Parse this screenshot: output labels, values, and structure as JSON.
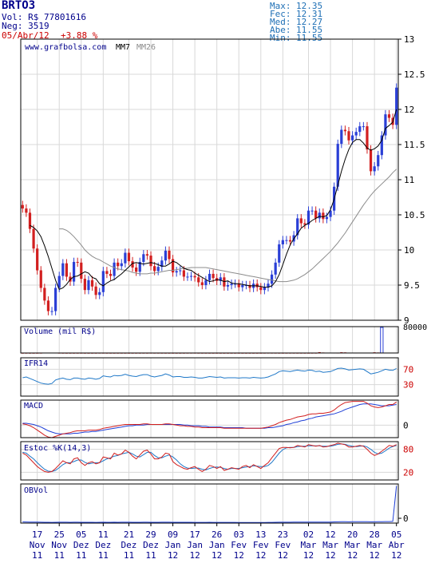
{
  "header": {
    "ticker": "BRTO3",
    "volume_label": "Vol: R$ 77801616",
    "trades_label": "Neg: 3519",
    "date": "05/Abr/12",
    "change": "+3.88 %",
    "stats": [
      {
        "label": "Max:",
        "value": "12.35"
      },
      {
        "label": "Fec:",
        "value": "12.31"
      },
      {
        "label": "Med:",
        "value": "12.27"
      },
      {
        "label": "Abe:",
        "value": "11.55"
      },
      {
        "label": "Min:",
        "value": "11.55"
      }
    ]
  },
  "colors": {
    "up": "#2a3fd6",
    "down": "#d21f1f",
    "mm7": "#000000",
    "mm26": "#8c8c8c",
    "ifr": "#1f78c8",
    "macd": "#d21f1f",
    "macd_signal": "#1f3fd6",
    "stoch_k": "#d21f1f",
    "stoch_d": "#1f78c8",
    "obv": "#1f3fd6",
    "grid": "#d8d8d8",
    "text_dark": "#00008b",
    "text_red": "#cc0000",
    "text_stats": "#1e6fb5"
  },
  "chart_data": [
    {
      "type": "candlestick",
      "watermark": "www.grafbolsa.com",
      "legend": [
        "MM7",
        "MM26"
      ],
      "y_ticks": [
        9,
        9.5,
        10,
        10.5,
        11,
        11.5,
        12,
        12.5,
        13
      ],
      "ylim": [
        9,
        13
      ],
      "x_tick_days": [
        "17",
        "25",
        "05",
        "11",
        "21",
        "29",
        "09",
        "17",
        "26",
        "03",
        "13",
        "23",
        "02",
        "12",
        "20",
        "28",
        "05"
      ],
      "x_tick_months": [
        "Nov",
        "Nov",
        "Dez",
        "Dez",
        "Dez",
        "Dez",
        "Jan",
        "Jan",
        "Jan",
        "Fev",
        "Fev",
        "Fev",
        "Mar",
        "Mar",
        "Mar",
        "Mar",
        "Abr"
      ],
      "x_tick_years": [
        "11",
        "11",
        "11",
        "11",
        "11",
        "11",
        "12",
        "12",
        "12",
        "12",
        "12",
        "12",
        "12",
        "12",
        "12",
        "12",
        "12"
      ],
      "close": [
        10.59,
        10.53,
        10.3,
        10.02,
        9.71,
        9.46,
        9.28,
        9.13,
        9.13,
        9.46,
        9.63,
        9.81,
        9.62,
        9.55,
        9.83,
        9.82,
        9.59,
        9.43,
        9.57,
        9.48,
        9.36,
        9.4,
        9.7,
        9.66,
        9.63,
        9.82,
        9.77,
        9.81,
        9.96,
        9.84,
        9.75,
        9.69,
        9.83,
        9.94,
        9.92,
        9.77,
        9.7,
        9.76,
        9.85,
        9.99,
        9.87,
        9.68,
        9.7,
        9.71,
        9.62,
        9.62,
        9.63,
        9.61,
        9.54,
        9.5,
        9.57,
        9.66,
        9.6,
        9.56,
        9.61,
        9.48,
        9.5,
        9.52,
        9.52,
        9.47,
        9.5,
        9.5,
        9.46,
        9.52,
        9.47,
        9.43,
        9.47,
        9.52,
        9.65,
        9.82,
        10.08,
        10.14,
        10.14,
        10.12,
        10.21,
        10.45,
        10.38,
        10.36,
        10.56,
        10.56,
        10.45,
        10.53,
        10.44,
        10.47,
        10.56,
        10.9,
        11.51,
        11.71,
        11.69,
        11.56,
        11.63,
        11.68,
        11.76,
        11.76,
        11.43,
        11.12,
        11.19,
        11.35,
        11.63,
        11.93,
        11.88,
        11.78,
        12.31
      ],
      "mm7": [
        10.35,
        10.32,
        10.27,
        10.19,
        10.06,
        9.91,
        9.74,
        9.57,
        9.44,
        9.46,
        9.51,
        9.58,
        9.62,
        9.63,
        9.66,
        9.69,
        9.67,
        9.61,
        9.59,
        9.52,
        9.49,
        9.53,
        9.56,
        9.58,
        9.62,
        9.66,
        9.71,
        9.76,
        9.81,
        9.82,
        9.81,
        9.8,
        9.81,
        9.82,
        9.81,
        9.79,
        9.77,
        9.77,
        9.8,
        9.84,
        9.82,
        9.78,
        9.74,
        9.72,
        9.71,
        9.67,
        9.64,
        9.61,
        9.58,
        9.55,
        9.56,
        9.58,
        9.57,
        9.55,
        9.56,
        9.53,
        9.52,
        9.52,
        9.51,
        9.5,
        9.49,
        9.49,
        9.49,
        9.48,
        9.47,
        9.47,
        9.49,
        9.55,
        9.65,
        9.79,
        9.94,
        10.07,
        10.16,
        10.23,
        10.31,
        10.35,
        10.38,
        10.42,
        10.45,
        10.48,
        10.47,
        10.49,
        10.57,
        10.72,
        10.92,
        11.12,
        11.29,
        11.43,
        11.53,
        11.57,
        11.57,
        11.52,
        11.45,
        11.42,
        11.44,
        11.48,
        11.56,
        11.73,
        11.77,
        11.82,
        12.0
      ],
      "mm26": [
        10.3,
        10.3,
        10.28,
        10.24,
        10.19,
        10.13,
        10.07,
        10.0,
        9.95,
        9.91,
        9.88,
        9.86,
        9.83,
        9.8,
        9.77,
        9.75,
        9.73,
        9.72,
        9.71,
        9.7,
        9.68,
        9.67,
        9.66,
        9.66,
        9.66,
        9.67,
        9.67,
        9.68,
        9.69,
        9.7,
        9.71,
        9.71,
        9.72,
        9.73,
        9.74,
        9.74,
        9.75,
        9.75,
        9.75,
        9.75,
        9.75,
        9.74,
        9.73,
        9.72,
        9.71,
        9.7,
        9.69,
        9.68,
        9.67,
        9.66,
        9.65,
        9.64,
        9.63,
        9.62,
        9.61,
        9.6,
        9.59,
        9.58,
        9.57,
        9.56,
        9.55,
        9.55,
        9.55,
        9.56,
        9.57,
        9.59,
        9.62,
        9.65,
        9.69,
        9.73,
        9.78,
        9.83,
        9.88,
        9.93,
        9.98,
        10.04,
        10.1,
        10.17,
        10.24,
        10.32,
        10.4,
        10.48,
        10.56,
        10.64,
        10.71,
        10.78,
        10.84,
        10.89,
        10.94,
        10.99,
        11.04,
        11.1,
        11.15
      ]
    },
    {
      "type": "bar",
      "title": "Volume (mil R$)",
      "y_ticks": [
        80000
      ],
      "ylim": [
        0,
        80000
      ],
      "values": [
        120,
        180,
        150,
        140,
        160,
        300,
        900,
        800,
        850,
        700,
        300,
        200,
        150,
        140,
        160,
        180,
        200,
        150,
        120,
        140,
        160,
        300,
        250,
        200,
        180,
        160,
        200,
        190,
        170,
        160,
        180,
        190,
        200,
        250,
        230,
        300,
        280,
        260,
        200,
        180,
        170,
        160,
        150,
        140,
        200,
        280,
        350,
        300,
        250,
        200,
        180,
        170,
        160,
        150,
        140,
        130,
        150,
        160,
        170,
        180,
        160,
        150,
        140,
        130,
        120,
        150,
        300,
        400,
        350,
        300,
        250,
        200,
        260,
        300,
        280,
        240,
        220,
        200,
        180,
        260,
        300,
        2500,
        1500,
        800,
        900,
        700,
        600,
        2200,
        1800,
        1200,
        900,
        700,
        800,
        900,
        1000,
        1200,
        2000,
        1500,
        77801
      ]
    },
    {
      "type": "line",
      "title": "IFR14",
      "y_ticks": [
        30,
        70
      ],
      "ylim": [
        0,
        100
      ],
      "values": [
        48,
        50,
        46,
        42,
        38,
        34,
        32,
        31,
        33,
        42,
        45,
        47,
        44,
        43,
        47,
        47,
        45,
        44,
        47,
        46,
        44,
        46,
        53,
        51,
        50,
        54,
        53,
        54,
        57,
        54,
        52,
        51,
        54,
        56,
        56,
        52,
        50,
        52,
        54,
        58,
        55,
        50,
        51,
        51,
        49,
        49,
        50,
        49,
        47,
        47,
        49,
        51,
        50,
        49,
        50,
        47,
        48,
        48,
        48,
        47,
        48,
        48,
        47,
        49,
        48,
        47,
        48,
        50,
        54,
        58,
        64,
        66,
        65,
        64,
        66,
        68,
        66,
        65,
        68,
        67,
        64,
        65,
        62,
        63,
        64,
        68,
        72,
        73,
        71,
        68,
        69,
        70,
        71,
        70,
        64,
        58,
        60,
        62,
        66,
        70,
        68,
        67,
        72
      ]
    },
    {
      "type": "line",
      "title": "MACD",
      "y_ticks": [
        0
      ],
      "ylim": [
        -0.2,
        0.4
      ],
      "series": [
        {
          "values": [
            0.02,
            0.01,
            -0.01,
            -0.04,
            -0.08,
            -0.12,
            -0.16,
            -0.19,
            -0.2,
            -0.18,
            -0.16,
            -0.14,
            -0.13,
            -0.12,
            -0.1,
            -0.09,
            -0.09,
            -0.09,
            -0.08,
            -0.08,
            -0.08,
            -0.07,
            -0.05,
            -0.04,
            -0.03,
            -0.02,
            -0.01,
            0.0,
            0.01,
            0.01,
            0.01,
            0.01,
            0.01,
            0.02,
            0.02,
            0.01,
            0.01,
            0.01,
            0.01,
            0.02,
            0.02,
            0.01,
            0.0,
            -0.01,
            -0.01,
            -0.02,
            -0.02,
            -0.03,
            -0.03,
            -0.04,
            -0.04,
            -0.04,
            -0.04,
            -0.04,
            -0.04,
            -0.05,
            -0.05,
            -0.05,
            -0.05,
            -0.05,
            -0.05,
            -0.05,
            -0.05,
            -0.05,
            -0.05,
            -0.05,
            -0.04,
            -0.03,
            -0.01,
            0.01,
            0.04,
            0.06,
            0.08,
            0.09,
            0.11,
            0.13,
            0.14,
            0.15,
            0.17,
            0.18,
            0.18,
            0.19,
            0.19,
            0.2,
            0.21,
            0.24,
            0.29,
            0.33,
            0.36,
            0.37,
            0.38,
            0.38,
            0.38,
            0.38,
            0.35,
            0.31,
            0.29,
            0.28,
            0.29,
            0.31,
            0.33,
            0.33,
            0.37
          ]
        },
        {
          "values": [
            0.03,
            0.03,
            0.02,
            0.01,
            -0.01,
            -0.03,
            -0.06,
            -0.09,
            -0.11,
            -0.13,
            -0.14,
            -0.14,
            -0.14,
            -0.14,
            -0.13,
            -0.13,
            -0.12,
            -0.11,
            -0.11,
            -0.1,
            -0.1,
            -0.09,
            -0.08,
            -0.07,
            -0.06,
            -0.05,
            -0.04,
            -0.03,
            -0.02,
            -0.01,
            -0.01,
            0.0,
            0.0,
            0.0,
            0.01,
            0.01,
            0.01,
            0.01,
            0.01,
            0.01,
            0.01,
            0.01,
            0.01,
            0.01,
            0.0,
            0.0,
            -0.01,
            -0.01,
            -0.01,
            -0.02,
            -0.02,
            -0.03,
            -0.03,
            -0.03,
            -0.03,
            -0.04,
            -0.04,
            -0.04,
            -0.04,
            -0.04,
            -0.04,
            -0.05,
            -0.05,
            -0.05,
            -0.05,
            -0.05,
            -0.05,
            -0.04,
            -0.04,
            -0.03,
            -0.02,
            -0.01,
            0.01,
            0.02,
            0.04,
            0.05,
            0.07,
            0.08,
            0.1,
            0.11,
            0.13,
            0.14,
            0.15,
            0.16,
            0.17,
            0.18,
            0.2,
            0.22,
            0.25,
            0.27,
            0.29,
            0.31,
            0.33,
            0.34,
            0.34,
            0.34,
            0.33,
            0.32,
            0.31,
            0.31,
            0.31,
            0.32,
            0.33
          ]
        }
      ]
    },
    {
      "type": "line",
      "title": "Estoc %K(14,3)",
      "y_ticks": [
        20,
        80
      ],
      "ylim": [
        0,
        100
      ],
      "series": [
        {
          "values": [
            70,
            65,
            55,
            45,
            35,
            28,
            22,
            20,
            22,
            30,
            40,
            50,
            45,
            42,
            55,
            58,
            45,
            38,
            45,
            48,
            42,
            45,
            60,
            58,
            55,
            70,
            65,
            68,
            78,
            72,
            62,
            55,
            65,
            75,
            78,
            68,
            55,
            55,
            60,
            70,
            68,
            48,
            40,
            35,
            30,
            28,
            32,
            35,
            28,
            22,
            28,
            38,
            35,
            30,
            35,
            25,
            28,
            32,
            30,
            28,
            35,
            38,
            32,
            40,
            35,
            30,
            38,
            45,
            58,
            70,
            82,
            85,
            85,
            84,
            85,
            90,
            88,
            86,
            92,
            90,
            88,
            90,
            86,
            87,
            90,
            92,
            96,
            94,
            92,
            86,
            86,
            88,
            90,
            88,
            80,
            70,
            64,
            68,
            75,
            82,
            90,
            88,
            92
          ]
        },
        {
          "values": [
            72,
            70,
            62,
            55,
            45,
            36,
            28,
            23,
            22,
            25,
            32,
            40,
            45,
            45,
            48,
            52,
            52,
            46,
            42,
            44,
            45,
            45,
            50,
            55,
            58,
            62,
            64,
            68,
            70,
            72,
            68,
            62,
            60,
            66,
            72,
            72,
            64,
            58,
            58,
            62,
            65,
            60,
            52,
            42,
            35,
            31,
            30,
            31,
            31,
            28,
            26,
            30,
            33,
            34,
            33,
            30,
            28,
            30,
            30,
            30,
            32,
            34,
            35,
            37,
            36,
            35,
            35,
            38,
            46,
            58,
            70,
            79,
            84,
            85,
            85,
            87,
            88,
            88,
            89,
            89,
            89,
            89,
            88,
            88,
            88,
            90,
            93,
            94,
            93,
            90,
            88,
            87,
            88,
            89,
            86,
            80,
            72,
            68,
            70,
            76,
            83,
            87,
            90
          ]
        }
      ]
    },
    {
      "type": "line",
      "title": "OBVol",
      "y_ticks": [
        0
      ],
      "ylim": [
        0,
        1
      ],
      "values": [
        0.03,
        0.028,
        0.027,
        0.025,
        0.024,
        0.022,
        0.021,
        0.02,
        0.019,
        0.021,
        0.022,
        0.023,
        0.022,
        0.021,
        0.023,
        0.023,
        0.021,
        0.02,
        0.021,
        0.02,
        0.019,
        0.02,
        0.022,
        0.021,
        0.02,
        0.022,
        0.021,
        0.022,
        0.023,
        0.022,
        0.021,
        0.02,
        0.021,
        0.022,
        0.022,
        0.021,
        0.02,
        0.021,
        0.022,
        0.023,
        0.022,
        0.021,
        0.021,
        0.021,
        0.02,
        0.02,
        0.02,
        0.019,
        0.019,
        0.018,
        0.019,
        0.02,
        0.019,
        0.018,
        0.019,
        0.018,
        0.018,
        0.018,
        0.018,
        0.017,
        0.017,
        0.017,
        0.016,
        0.017,
        0.016,
        0.016,
        0.017,
        0.018,
        0.019,
        0.02,
        0.022,
        0.023,
        0.023,
        0.023,
        0.024,
        0.025,
        0.024,
        0.024,
        0.025,
        0.025,
        0.024,
        0.025,
        0.024,
        0.025,
        0.026,
        0.03,
        0.033,
        0.035,
        0.034,
        0.033,
        0.034,
        0.035,
        0.036,
        0.036,
        0.034,
        0.032,
        0.033,
        0.034,
        0.036,
        0.038,
        0.038,
        0.042,
        0.95
      ]
    }
  ]
}
